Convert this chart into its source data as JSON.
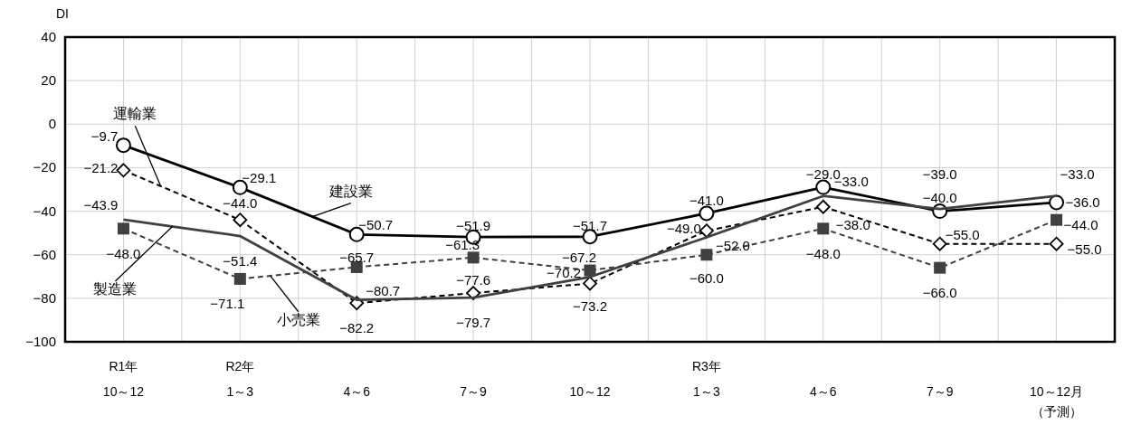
{
  "chart_data": {
    "type": "line",
    "ylabel": "DI",
    "categories": [
      "R1年\n10～12",
      "R2年\n1～3",
      "4～6",
      "7～9",
      "10～12",
      "R3年\n1～3",
      "4～6",
      "7～9",
      "10～12月"
    ],
    "annotations": [
      "（予測）"
    ],
    "ylim": [
      -100,
      40
    ],
    "yticks": [
      {
        "value": -100,
        "label": "−100"
      },
      {
        "value": -80,
        "label": "−80"
      },
      {
        "value": -60,
        "label": "−60"
      },
      {
        "value": -40,
        "label": "−40"
      },
      {
        "value": -20,
        "label": "−20"
      },
      0,
      20,
      40
    ],
    "grid": true,
    "series": [
      {
        "name": "建設業",
        "color": "#000000",
        "marker": "circle",
        "line_style": "solid",
        "values": [
          -9.7,
          -29.1,
          -50.7,
          -51.9,
          -51.7,
          -41.0,
          -29.0,
          -40.0,
          -36.0
        ],
        "value_labels": [
          "−9.7",
          "−29.1",
          "−50.7",
          "−51.9",
          "−51.7",
          "−41.0",
          "−29.0",
          "−40.0",
          "−36.0"
        ]
      },
      {
        "name": "運輸業",
        "color": "#000000",
        "marker": "diamond",
        "line_style": "dashed",
        "values": [
          -21.2,
          -44.0,
          -82.2,
          -77.6,
          -73.2,
          -49.0,
          -38.0,
          -55.0,
          -55.0
        ],
        "value_labels": [
          "−21.2",
          "−44.0",
          "−82.2",
          "−77.6",
          "−73.2",
          "−49.0",
          "−38.0",
          "−55.0",
          "−55.0"
        ]
      },
      {
        "name": "小売業",
        "color": "#404040",
        "marker": "square",
        "line_style": "dashed",
        "values": [
          -48.0,
          -71.1,
          -65.7,
          -61.3,
          -67.2,
          -60.0,
          -48.0,
          -66.0,
          -44.0
        ],
        "value_labels": [
          "−48.0",
          "−71.1",
          "−65.7",
          "−61.3",
          "−67.2",
          "−60.0",
          "−48.0",
          "−66.0",
          "−44.0"
        ]
      },
      {
        "name": "製造業",
        "color": "#404040",
        "marker": "none",
        "line_style": "solid",
        "values": [
          -43.9,
          -51.4,
          -80.7,
          -79.7,
          -70.2,
          -52.0,
          -33.0,
          -39.0,
          -33.0
        ],
        "value_labels": [
          "−43.9",
          "−51.4",
          "−80.7",
          "−79.7",
          "−70.2",
          "−52.0",
          "−33.0",
          "−39.0",
          "−33.0"
        ]
      }
    ]
  }
}
